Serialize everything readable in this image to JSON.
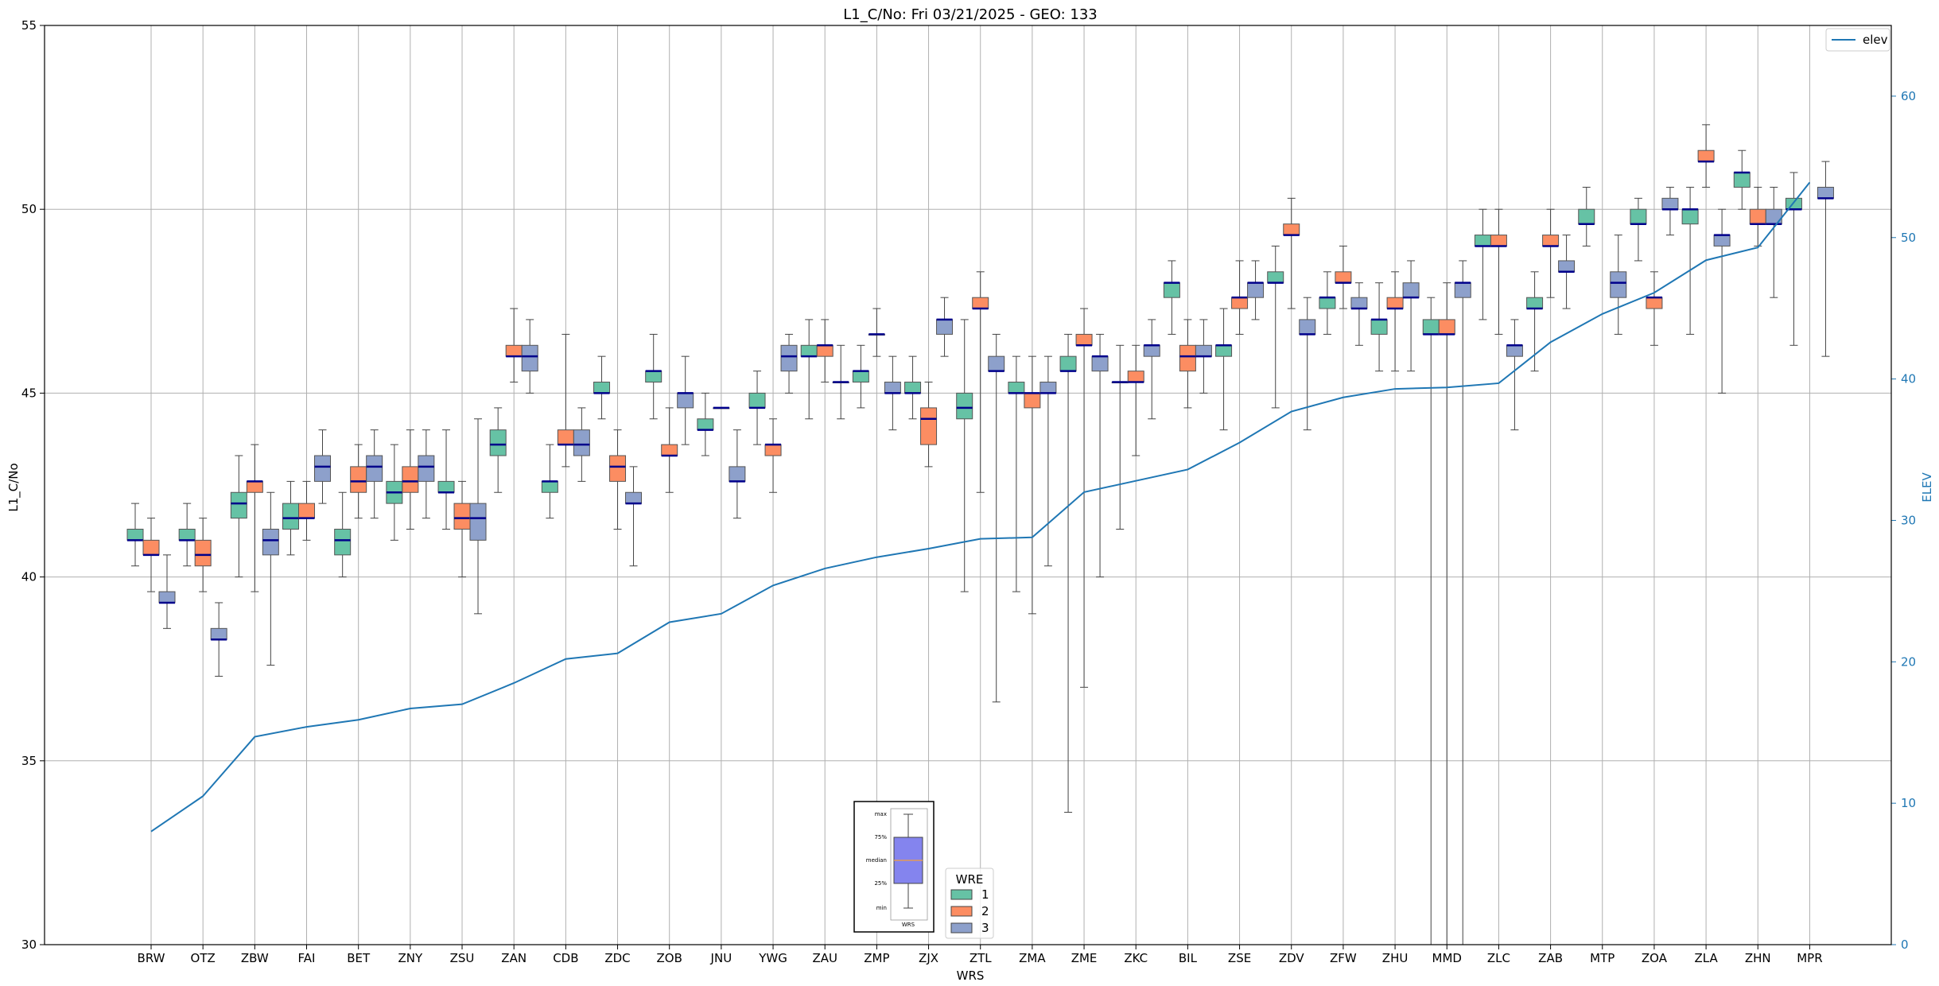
{
  "chart_data": {
    "type": "boxplot",
    "title": "L1_C/No: Fri 03/21/2025 - GEO: 133",
    "xlabel": "WRS",
    "ylabel": "L1_C/No",
    "y2label": "ELEV",
    "ylim": [
      30,
      55
    ],
    "y2lim": [
      0,
      65
    ],
    "yticks": [
      30,
      35,
      40,
      45,
      50,
      55
    ],
    "y2ticks": [
      0,
      10,
      20,
      30,
      40,
      50,
      60
    ],
    "grid": true,
    "categories": [
      "BRW",
      "OTZ",
      "ZBW",
      "FAI",
      "BET",
      "ZNY",
      "ZSU",
      "ZAN",
      "CDB",
      "ZDC",
      "ZOB",
      "JNU",
      "YWG",
      "ZAU",
      "ZMP",
      "ZJX",
      "ZTL",
      "ZMA",
      "ZME",
      "ZKC",
      "BIL",
      "ZSE",
      "ZDV",
      "ZFW",
      "ZHU",
      "MMD",
      "ZLC",
      "ZAB",
      "MTP",
      "ZOA",
      "ZLA",
      "ZHN",
      "MPR"
    ],
    "series_colors": {
      "1": "#66c2a5",
      "2": "#fc8d62",
      "3": "#8da0cb"
    },
    "median_color": "#00008b",
    "elev_color": "#1f77b4",
    "boxes": [
      {
        "station": "BRW",
        "wre": 1,
        "min": 40.3,
        "q1": 41.0,
        "median": 41.0,
        "q3": 41.3,
        "max": 42.0
      },
      {
        "station": "BRW",
        "wre": 2,
        "min": 39.6,
        "q1": 40.6,
        "median": 40.6,
        "q3": 41.0,
        "max": 41.6
      },
      {
        "station": "BRW",
        "wre": 3,
        "min": 38.6,
        "q1": 39.3,
        "median": 39.3,
        "q3": 39.6,
        "max": 40.6
      },
      {
        "station": "OTZ",
        "wre": 1,
        "min": 40.3,
        "q1": 41.0,
        "median": 41.0,
        "q3": 41.3,
        "max": 42.0
      },
      {
        "station": "OTZ",
        "wre": 2,
        "min": 39.6,
        "q1": 40.3,
        "median": 40.6,
        "q3": 41.0,
        "max": 41.6
      },
      {
        "station": "OTZ",
        "wre": 3,
        "min": 37.3,
        "q1": 38.3,
        "median": 38.3,
        "q3": 38.6,
        "max": 39.3
      },
      {
        "station": "ZBW",
        "wre": 1,
        "min": 40.0,
        "q1": 41.6,
        "median": 42.0,
        "q3": 42.3,
        "max": 43.3
      },
      {
        "station": "ZBW",
        "wre": 2,
        "min": 39.6,
        "q1": 42.3,
        "median": 42.6,
        "q3": 42.6,
        "max": 43.6
      },
      {
        "station": "ZBW",
        "wre": 3,
        "min": 37.6,
        "q1": 40.6,
        "median": 41.0,
        "q3": 41.3,
        "max": 42.3
      },
      {
        "station": "FAI",
        "wre": 1,
        "min": 40.6,
        "q1": 41.3,
        "median": 41.6,
        "q3": 42.0,
        "max": 42.6
      },
      {
        "station": "FAI",
        "wre": 2,
        "min": 41.0,
        "q1": 41.6,
        "median": 41.6,
        "q3": 42.0,
        "max": 42.6
      },
      {
        "station": "FAI",
        "wre": 3,
        "min": 42.0,
        "q1": 42.6,
        "median": 43.0,
        "q3": 43.3,
        "max": 44.0
      },
      {
        "station": "BET",
        "wre": 1,
        "min": 40.0,
        "q1": 40.6,
        "median": 41.0,
        "q3": 41.3,
        "max": 42.3
      },
      {
        "station": "BET",
        "wre": 2,
        "min": 41.6,
        "q1": 42.3,
        "median": 42.6,
        "q3": 43.0,
        "max": 43.6
      },
      {
        "station": "BET",
        "wre": 3,
        "min": 41.6,
        "q1": 42.6,
        "median": 43.0,
        "q3": 43.3,
        "max": 44.0
      },
      {
        "station": "ZNY",
        "wre": 1,
        "min": 41.0,
        "q1": 42.0,
        "median": 42.3,
        "q3": 42.6,
        "max": 43.6
      },
      {
        "station": "ZNY",
        "wre": 2,
        "min": 41.3,
        "q1": 42.3,
        "median": 42.6,
        "q3": 43.0,
        "max": 44.0
      },
      {
        "station": "ZNY",
        "wre": 3,
        "min": 41.6,
        "q1": 42.6,
        "median": 43.0,
        "q3": 43.3,
        "max": 44.0
      },
      {
        "station": "ZSU",
        "wre": 1,
        "min": 41.3,
        "q1": 42.3,
        "median": 42.3,
        "q3": 42.6,
        "max": 44.0
      },
      {
        "station": "ZSU",
        "wre": 2,
        "min": 40.0,
        "q1": 41.3,
        "median": 41.6,
        "q3": 42.0,
        "max": 42.6
      },
      {
        "station": "ZSU",
        "wre": 3,
        "min": 39.0,
        "q1": 41.0,
        "median": 41.6,
        "q3": 42.0,
        "max": 44.3
      },
      {
        "station": "ZAN",
        "wre": 1,
        "min": 42.3,
        "q1": 43.3,
        "median": 43.6,
        "q3": 44.0,
        "max": 44.6
      },
      {
        "station": "ZAN",
        "wre": 2,
        "min": 45.3,
        "q1": 46.0,
        "median": 46.0,
        "q3": 46.3,
        "max": 47.3
      },
      {
        "station": "ZAN",
        "wre": 3,
        "min": 45.0,
        "q1": 45.6,
        "median": 46.0,
        "q3": 46.3,
        "max": 47.0
      },
      {
        "station": "CDB",
        "wre": 1,
        "min": 41.6,
        "q1": 42.3,
        "median": 42.6,
        "q3": 42.6,
        "max": 43.6
      },
      {
        "station": "CDB",
        "wre": 2,
        "min": 43.0,
        "q1": 43.6,
        "median": 43.6,
        "q3": 44.0,
        "max": 46.6
      },
      {
        "station": "CDB",
        "wre": 3,
        "min": 42.6,
        "q1": 43.3,
        "median": 43.6,
        "q3": 44.0,
        "max": 44.6
      },
      {
        "station": "ZDC",
        "wre": 1,
        "min": 44.3,
        "q1": 45.0,
        "median": 45.0,
        "q3": 45.3,
        "max": 46.0
      },
      {
        "station": "ZDC",
        "wre": 2,
        "min": 41.3,
        "q1": 42.6,
        "median": 43.0,
        "q3": 43.3,
        "max": 44.0
      },
      {
        "station": "ZDC",
        "wre": 3,
        "min": 40.3,
        "q1": 42.0,
        "median": 42.0,
        "q3": 42.3,
        "max": 43.0
      },
      {
        "station": "ZOB",
        "wre": 1,
        "min": 44.3,
        "q1": 45.3,
        "median": 45.6,
        "q3": 45.6,
        "max": 46.6
      },
      {
        "station": "ZOB",
        "wre": 2,
        "min": 42.3,
        "q1": 43.3,
        "median": 43.3,
        "q3": 43.6,
        "max": 44.6
      },
      {
        "station": "ZOB",
        "wre": 3,
        "min": 43.6,
        "q1": 44.6,
        "median": 45.0,
        "q3": 45.0,
        "max": 46.0
      },
      {
        "station": "JNU",
        "wre": 1,
        "min": 43.3,
        "q1": 44.0,
        "median": 44.0,
        "q3": 44.3,
        "max": 45.0
      },
      {
        "station": "JNU",
        "wre": 2,
        "min": 44.6,
        "q1": 44.6,
        "median": 44.6,
        "q3": 44.6,
        "max": 44.6
      },
      {
        "station": "JNU",
        "wre": 3,
        "min": 41.6,
        "q1": 42.6,
        "median": 42.6,
        "q3": 43.0,
        "max": 44.0
      },
      {
        "station": "YWG",
        "wre": 1,
        "min": 43.6,
        "q1": 44.6,
        "median": 44.6,
        "q3": 45.0,
        "max": 45.6
      },
      {
        "station": "YWG",
        "wre": 2,
        "min": 42.3,
        "q1": 43.3,
        "median": 43.6,
        "q3": 43.6,
        "max": 44.3
      },
      {
        "station": "YWG",
        "wre": 3,
        "min": 45.0,
        "q1": 45.6,
        "median": 46.0,
        "q3": 46.3,
        "max": 46.6
      },
      {
        "station": "ZAU",
        "wre": 1,
        "min": 44.3,
        "q1": 46.0,
        "median": 46.0,
        "q3": 46.3,
        "max": 47.0
      },
      {
        "station": "ZAU",
        "wre": 2,
        "min": 45.3,
        "q1": 46.0,
        "median": 46.3,
        "q3": 46.3,
        "max": 47.0
      },
      {
        "station": "ZAU",
        "wre": 3,
        "min": 44.3,
        "q1": 45.3,
        "median": 45.3,
        "q3": 45.3,
        "max": 46.3
      },
      {
        "station": "ZMP",
        "wre": 1,
        "min": 44.6,
        "q1": 45.3,
        "median": 45.6,
        "q3": 45.6,
        "max": 46.3
      },
      {
        "station": "ZMP",
        "wre": 2,
        "min": 46.0,
        "q1": 46.6,
        "median": 46.6,
        "q3": 46.6,
        "max": 47.3
      },
      {
        "station": "ZMP",
        "wre": 3,
        "min": 44.0,
        "q1": 45.0,
        "median": 45.0,
        "q3": 45.3,
        "max": 46.0
      },
      {
        "station": "ZJX",
        "wre": 1,
        "min": 44.3,
        "q1": 45.0,
        "median": 45.0,
        "q3": 45.3,
        "max": 46.0
      },
      {
        "station": "ZJX",
        "wre": 2,
        "min": 43.0,
        "q1": 43.6,
        "median": 44.3,
        "q3": 44.6,
        "max": 45.3
      },
      {
        "station": "ZJX",
        "wre": 3,
        "min": 46.0,
        "q1": 46.6,
        "median": 47.0,
        "q3": 47.0,
        "max": 47.6
      },
      {
        "station": "ZTL",
        "wre": 1,
        "min": 39.6,
        "q1": 44.3,
        "median": 44.6,
        "q3": 45.0,
        "max": 47.0
      },
      {
        "station": "ZTL",
        "wre": 2,
        "min": 42.3,
        "q1": 47.3,
        "median": 47.3,
        "q3": 47.6,
        "max": 48.3
      },
      {
        "station": "ZTL",
        "wre": 3,
        "min": 36.6,
        "q1": 45.6,
        "median": 45.6,
        "q3": 46.0,
        "max": 46.6
      },
      {
        "station": "ZMA",
        "wre": 1,
        "min": 39.6,
        "q1": 45.0,
        "median": 45.0,
        "q3": 45.3,
        "max": 46.0
      },
      {
        "station": "ZMA",
        "wre": 2,
        "min": 39.0,
        "q1": 44.6,
        "median": 45.0,
        "q3": 45.0,
        "max": 46.0
      },
      {
        "station": "ZMA",
        "wre": 3,
        "min": 40.3,
        "q1": 45.0,
        "median": 45.0,
        "q3": 45.3,
        "max": 46.0
      },
      {
        "station": "ZME",
        "wre": 1,
        "min": 33.6,
        "q1": 45.6,
        "median": 45.6,
        "q3": 46.0,
        "max": 46.6
      },
      {
        "station": "ZME",
        "wre": 2,
        "min": 37.0,
        "q1": 46.3,
        "median": 46.3,
        "q3": 46.6,
        "max": 47.3
      },
      {
        "station": "ZME",
        "wre": 3,
        "min": 40.0,
        "q1": 45.6,
        "median": 46.0,
        "q3": 46.0,
        "max": 46.6
      },
      {
        "station": "ZKC",
        "wre": 1,
        "min": 41.3,
        "q1": 45.3,
        "median": 45.3,
        "q3": 45.3,
        "max": 46.3
      },
      {
        "station": "ZKC",
        "wre": 2,
        "min": 43.3,
        "q1": 45.3,
        "median": 45.3,
        "q3": 45.6,
        "max": 46.3
      },
      {
        "station": "ZKC",
        "wre": 3,
        "min": 44.3,
        "q1": 46.0,
        "median": 46.3,
        "q3": 46.3,
        "max": 47.0
      },
      {
        "station": "BIL",
        "wre": 1,
        "min": 46.6,
        "q1": 47.6,
        "median": 48.0,
        "q3": 48.0,
        "max": 48.6
      },
      {
        "station": "BIL",
        "wre": 2,
        "min": 44.6,
        "q1": 45.6,
        "median": 46.0,
        "q3": 46.3,
        "max": 47.0
      },
      {
        "station": "BIL",
        "wre": 3,
        "min": 45.0,
        "q1": 46.0,
        "median": 46.0,
        "q3": 46.3,
        "max": 47.0
      },
      {
        "station": "ZSE",
        "wre": 1,
        "min": 44.0,
        "q1": 46.0,
        "median": 46.3,
        "q3": 46.3,
        "max": 47.3
      },
      {
        "station": "ZSE",
        "wre": 2,
        "min": 46.6,
        "q1": 47.3,
        "median": 47.6,
        "q3": 47.6,
        "max": 48.6
      },
      {
        "station": "ZSE",
        "wre": 3,
        "min": 47.0,
        "q1": 47.6,
        "median": 48.0,
        "q3": 48.0,
        "max": 48.6
      },
      {
        "station": "ZDV",
        "wre": 1,
        "min": 44.6,
        "q1": 48.0,
        "median": 48.0,
        "q3": 48.3,
        "max": 49.0
      },
      {
        "station": "ZDV",
        "wre": 2,
        "min": 47.3,
        "q1": 49.3,
        "median": 49.3,
        "q3": 49.6,
        "max": 50.3
      },
      {
        "station": "ZDV",
        "wre": 3,
        "min": 44.0,
        "q1": 46.6,
        "median": 46.6,
        "q3": 47.0,
        "max": 47.6
      },
      {
        "station": "ZFW",
        "wre": 1,
        "min": 46.6,
        "q1": 47.3,
        "median": 47.6,
        "q3": 47.6,
        "max": 48.3
      },
      {
        "station": "ZFW",
        "wre": 2,
        "min": 47.3,
        "q1": 48.0,
        "median": 48.0,
        "q3": 48.3,
        "max": 49.0
      },
      {
        "station": "ZFW",
        "wre": 3,
        "min": 46.3,
        "q1": 47.3,
        "median": 47.3,
        "q3": 47.6,
        "max": 48.0
      },
      {
        "station": "ZHU",
        "wre": 1,
        "min": 45.6,
        "q1": 46.6,
        "median": 47.0,
        "q3": 47.0,
        "max": 48.0
      },
      {
        "station": "ZHU",
        "wre": 2,
        "min": 45.6,
        "q1": 47.3,
        "median": 47.3,
        "q3": 47.6,
        "max": 48.3
      },
      {
        "station": "ZHU",
        "wre": 3,
        "min": 45.6,
        "q1": 47.6,
        "median": 47.6,
        "q3": 48.0,
        "max": 48.6
      },
      {
        "station": "MMD",
        "wre": 1,
        "min": 30.0,
        "q1": 46.6,
        "median": 46.6,
        "q3": 47.0,
        "max": 47.6
      },
      {
        "station": "MMD",
        "wre": 2,
        "min": 30.0,
        "q1": 46.6,
        "median": 46.6,
        "q3": 47.0,
        "max": 48.0
      },
      {
        "station": "MMD",
        "wre": 3,
        "min": 30.0,
        "q1": 47.6,
        "median": 48.0,
        "q3": 48.0,
        "max": 48.6
      },
      {
        "station": "ZLC",
        "wre": 1,
        "min": 47.0,
        "q1": 49.0,
        "median": 49.0,
        "q3": 49.3,
        "max": 50.0
      },
      {
        "station": "ZLC",
        "wre": 2,
        "min": 46.6,
        "q1": 49.0,
        "median": 49.0,
        "q3": 49.3,
        "max": 50.0
      },
      {
        "station": "ZLC",
        "wre": 3,
        "min": 44.0,
        "q1": 46.0,
        "median": 46.3,
        "q3": 46.3,
        "max": 47.0
      },
      {
        "station": "ZAB",
        "wre": 1,
        "min": 45.6,
        "q1": 47.3,
        "median": 47.3,
        "q3": 47.6,
        "max": 48.3
      },
      {
        "station": "ZAB",
        "wre": 2,
        "min": 47.6,
        "q1": 49.0,
        "median": 49.0,
        "q3": 49.3,
        "max": 50.0
      },
      {
        "station": "ZAB",
        "wre": 3,
        "min": 47.3,
        "q1": 48.3,
        "median": 48.3,
        "q3": 48.6,
        "max": 49.3
      },
      {
        "station": "MTP",
        "wre": 1,
        "min": 49.0,
        "q1": 49.6,
        "median": 49.6,
        "q3": 50.0,
        "max": 50.6
      },
      {
        "station": "MTP",
        "wre": 3,
        "min": 46.6,
        "q1": 47.6,
        "median": 48.0,
        "q3": 48.3,
        "max": 49.3
      },
      {
        "station": "ZOA",
        "wre": 1,
        "min": 48.6,
        "q1": 49.6,
        "median": 49.6,
        "q3": 50.0,
        "max": 50.3
      },
      {
        "station": "ZOA",
        "wre": 2,
        "min": 46.3,
        "q1": 47.3,
        "median": 47.6,
        "q3": 47.6,
        "max": 48.3
      },
      {
        "station": "ZOA",
        "wre": 3,
        "min": 49.3,
        "q1": 50.0,
        "median": 50.0,
        "q3": 50.3,
        "max": 50.6
      },
      {
        "station": "ZLA",
        "wre": 1,
        "min": 46.6,
        "q1": 49.6,
        "median": 50.0,
        "q3": 50.0,
        "max": 50.6
      },
      {
        "station": "ZLA",
        "wre": 2,
        "min": 50.6,
        "q1": 51.3,
        "median": 51.3,
        "q3": 51.6,
        "max": 52.3
      },
      {
        "station": "ZLA",
        "wre": 3,
        "min": 45.0,
        "q1": 49.0,
        "median": 49.3,
        "q3": 49.3,
        "max": 50.0
      },
      {
        "station": "ZHN",
        "wre": 1,
        "min": 50.0,
        "q1": 50.6,
        "median": 51.0,
        "q3": 51.0,
        "max": 51.6
      },
      {
        "station": "ZHN",
        "wre": 2,
        "min": 49.0,
        "q1": 49.6,
        "median": 49.6,
        "q3": 50.0,
        "max": 50.6
      },
      {
        "station": "ZHN",
        "wre": 3,
        "min": 47.6,
        "q1": 49.6,
        "median": 49.6,
        "q3": 50.0,
        "max": 50.6
      },
      {
        "station": "MPR",
        "wre": 1,
        "min": 46.3,
        "q1": 50.0,
        "median": 50.0,
        "q3": 50.3,
        "max": 51.0
      },
      {
        "station": "MPR",
        "wre": 3,
        "min": 46.0,
        "q1": 50.3,
        "median": 50.3,
        "q3": 50.6,
        "max": 51.3
      }
    ],
    "elev_series": {
      "name": "elev",
      "values": [
        8.0,
        10.5,
        14.7,
        15.4,
        15.9,
        16.7,
        17.0,
        18.5,
        20.2,
        20.6,
        22.8,
        23.4,
        25.4,
        26.6,
        27.4,
        28.0,
        28.7,
        28.8,
        32.0,
        32.8,
        33.6,
        35.5,
        37.7,
        38.7,
        39.3,
        39.4,
        39.7,
        42.6,
        44.6,
        46.1,
        48.4,
        49.3,
        53.9
      ]
    },
    "legend": {
      "series_title": "WRE",
      "series_labels": [
        "1",
        "2",
        "3"
      ],
      "line_label": "elev",
      "line_location": "top-right"
    },
    "inset_key": {
      "labels": [
        "max",
        "75%",
        "median",
        "25%",
        "min"
      ],
      "xlabel": "WRS"
    }
  }
}
